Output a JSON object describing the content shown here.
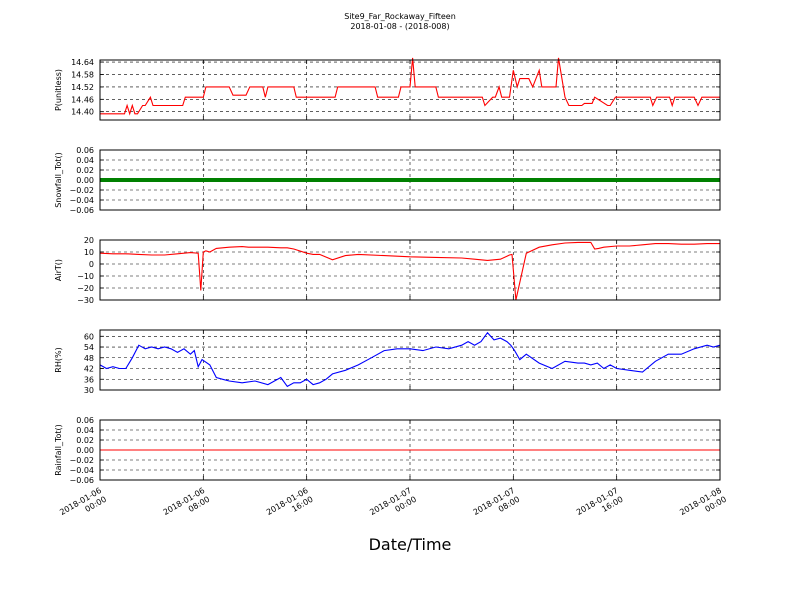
{
  "title": "Site9_Far_Rockaway_Fifteen",
  "subtitle": "2018-01-08 - (2018-008)",
  "xlabel": "Date/Time",
  "x_ticks": [
    [
      "2018-01-06",
      "00:00"
    ],
    [
      "2018-01-06",
      "08:00"
    ],
    [
      "2018-01-06",
      "16:00"
    ],
    [
      "2018-01-07",
      "00:00"
    ],
    [
      "2018-01-07",
      "08:00"
    ],
    [
      "2018-01-07",
      "16:00"
    ],
    [
      "2018-01-08",
      "00:00"
    ]
  ],
  "x_range_hours": [
    0,
    48
  ],
  "chart_data": [
    {
      "type": "line",
      "ylabel": "P(unitless)",
      "color": "#ff0000",
      "ylim": [
        14.36,
        14.65
      ],
      "yticks": [
        14.4,
        14.46,
        14.52,
        14.58,
        14.64
      ],
      "ytick_labels": [
        "14.40",
        "14.46",
        "14.52",
        "14.58",
        "14.64"
      ],
      "grid": true,
      "x_hours": [
        0,
        1.9,
        2.1,
        2.3,
        2.5,
        2.7,
        2.9,
        3.3,
        3.5,
        3.9,
        4.1,
        4.3,
        6.4,
        6.6,
        8.0,
        8.2,
        10.0,
        10.3,
        11.3,
        11.6,
        12.6,
        12.8,
        13.0,
        15.0,
        15.2,
        18.2,
        18.4,
        21.3,
        21.5,
        23.1,
        23.3,
        24.0,
        24.2,
        24.4,
        26.0,
        26.2,
        29.6,
        29.8,
        30.4,
        30.6,
        30.9,
        31.1,
        31.7,
        32.0,
        32.3,
        32.5,
        33.2,
        33.5,
        34.0,
        34.2,
        35.3,
        35.5,
        36.0,
        36.3,
        37.3,
        37.5,
        38.1,
        38.3,
        39.3,
        39.5,
        39.9,
        40.1,
        42.6,
        42.8,
        43.1,
        43.3,
        44.1,
        44.3,
        44.5,
        44.7,
        46.0,
        46.3,
        46.6,
        46.8,
        48.0
      ],
      "values": [
        14.39,
        14.39,
        14.43,
        14.39,
        14.43,
        14.39,
        14.39,
        14.43,
        14.43,
        14.47,
        14.43,
        14.43,
        14.43,
        14.47,
        14.47,
        14.52,
        14.52,
        14.48,
        14.48,
        14.52,
        14.52,
        14.47,
        14.52,
        14.52,
        14.47,
        14.47,
        14.52,
        14.52,
        14.47,
        14.47,
        14.52,
        14.52,
        14.66,
        14.52,
        14.52,
        14.47,
        14.47,
        14.43,
        14.47,
        14.47,
        14.52,
        14.47,
        14.47,
        14.6,
        14.52,
        14.56,
        14.56,
        14.52,
        14.6,
        14.52,
        14.52,
        14.66,
        14.47,
        14.43,
        14.43,
        14.44,
        14.44,
        14.47,
        14.43,
        14.43,
        14.47,
        14.47,
        14.47,
        14.43,
        14.47,
        14.47,
        14.47,
        14.43,
        14.47,
        14.47,
        14.47,
        14.43,
        14.47,
        14.47,
        14.47
      ]
    },
    {
      "type": "line",
      "ylabel": "Snowfall_Tot()",
      "color": "#008000",
      "marker": "dot",
      "ylim": [
        -0.06,
        0.06
      ],
      "yticks": [
        -0.06,
        -0.04,
        -0.02,
        0.0,
        0.02,
        0.04,
        0.06
      ],
      "ytick_labels": [
        "−0.06",
        "−0.04",
        "−0.02",
        "0.00",
        "0.02",
        "0.04",
        "0.06"
      ],
      "grid": true,
      "x_hours": [
        0,
        48
      ],
      "values": [
        0,
        0
      ]
    },
    {
      "type": "line",
      "ylabel": "AirT()",
      "color": "#ff0000",
      "ylim": [
        -30,
        20
      ],
      "yticks": [
        -30,
        -20,
        -10,
        0,
        10,
        20
      ],
      "ytick_labels": [
        "−30",
        "−20",
        "−10",
        "0",
        "10",
        "20"
      ],
      "grid": true,
      "x_hours": [
        0,
        1,
        2,
        3,
        4,
        5,
        6,
        7,
        7.6,
        7.8,
        8.0,
        8.2,
        8.5,
        9,
        10,
        11,
        11.5,
        12,
        13,
        14,
        14.5,
        15,
        16,
        16.5,
        17,
        18,
        19,
        20,
        22,
        24,
        26,
        28,
        29,
        30,
        31,
        31.5,
        31.7,
        31.9,
        32.2,
        33,
        34,
        35,
        36,
        37,
        38,
        38.3,
        38.6,
        39,
        40,
        41,
        42,
        43,
        44,
        45,
        46,
        47,
        48
      ],
      "values": [
        9,
        8.5,
        8.5,
        8,
        7.5,
        7.5,
        8.5,
        9.5,
        9,
        -22,
        10,
        11,
        10,
        13,
        14,
        14.5,
        14,
        14,
        14,
        13.5,
        13.5,
        12.5,
        9,
        8,
        8,
        3.5,
        7,
        8,
        7,
        6,
        5.5,
        5,
        4,
        3,
        4,
        6.5,
        7.5,
        8,
        -30,
        9,
        14,
        16,
        17.5,
        18,
        18,
        12.5,
        13,
        14,
        15,
        15,
        16,
        17,
        17,
        16.5,
        16.5,
        17,
        17
      ]
    },
    {
      "type": "line",
      "ylabel": "RH(%)",
      "color": "#0000ff",
      "ylim": [
        30,
        63.5
      ],
      "yticks": [
        30,
        36,
        42,
        48,
        54,
        60
      ],
      "ytick_labels": [
        "30",
        "36",
        "42",
        "48",
        "54",
        "60"
      ],
      "grid": true,
      "x_hours": [
        0,
        0.5,
        1,
        1.5,
        2,
        2.5,
        3,
        3.5,
        4,
        4.5,
        5,
        5.5,
        6,
        6.5,
        7,
        7.3,
        7.6,
        7.9,
        8.1,
        8.5,
        9,
        9.5,
        10,
        11,
        12,
        13,
        14,
        14.5,
        15,
        15.5,
        16,
        16.5,
        17,
        17.5,
        18,
        19,
        20,
        21,
        22,
        23,
        24,
        25,
        26,
        27,
        28,
        28.5,
        29,
        29.5,
        30,
        30.5,
        31,
        31.5,
        31.8,
        32.1,
        32.5,
        33,
        34,
        35,
        36,
        37,
        37.5,
        38,
        38.5,
        39,
        39.5,
        40,
        41,
        42,
        43,
        44,
        45,
        46,
        47,
        47.5,
        48
      ],
      "values": [
        44,
        42,
        43,
        42,
        42,
        48,
        55,
        53,
        54,
        53,
        54,
        53,
        51,
        53,
        50,
        52,
        43,
        47,
        46,
        44,
        37,
        36,
        35,
        34,
        35,
        33,
        37,
        32,
        34,
        34,
        36,
        33,
        34,
        36,
        39,
        41,
        44,
        48,
        52,
        53,
        53,
        52,
        54,
        53,
        55,
        57,
        55,
        57,
        62,
        58,
        59,
        57,
        55,
        52,
        47,
        50,
        45,
        42,
        46,
        45,
        45,
        44,
        45,
        42,
        44,
        42,
        41,
        40,
        46,
        50,
        50,
        53,
        55,
        54,
        55
      ]
    },
    {
      "type": "line",
      "ylabel": "Rainfall_Tot()",
      "color": "#ff0000",
      "ylim": [
        -0.06,
        0.06
      ],
      "yticks": [
        -0.06,
        -0.04,
        -0.02,
        0.0,
        0.02,
        0.04,
        0.06
      ],
      "ytick_labels": [
        "−0.06",
        "−0.04",
        "−0.02",
        "0.00",
        "0.02",
        "0.04",
        "0.06"
      ],
      "grid": true,
      "x_hours": [
        0,
        48
      ],
      "values": [
        0,
        0
      ]
    }
  ]
}
